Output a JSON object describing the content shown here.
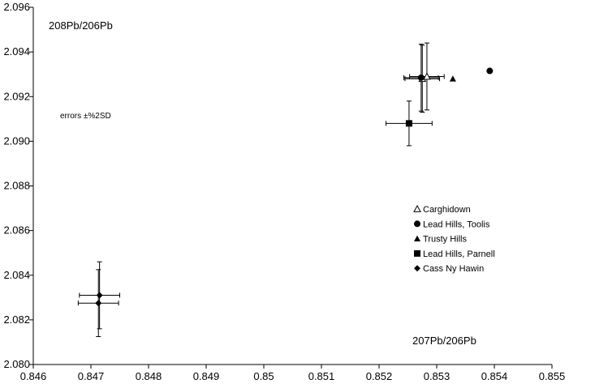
{
  "chart_data": {
    "type": "scatter",
    "title": "",
    "xlabel": "207Pb/206Pb",
    "ylabel": "208Pb/206Pb",
    "note": "errors ±%2SD",
    "xlim": [
      0.846,
      0.855
    ],
    "ylim": [
      2.08,
      2.096
    ],
    "x_ticks": [
      "0.846",
      "0.847",
      "0.848",
      "0.849",
      "0.85",
      "0.851",
      "0.852",
      "0.853",
      "0.854",
      "0.855"
    ],
    "y_ticks": [
      "2.080",
      "2.082",
      "2.084",
      "2.086",
      "2.088",
      "2.090",
      "2.092",
      "2.094",
      "2.096"
    ],
    "grid": false,
    "legend_position": "right",
    "series": [
      {
        "name": "Carghidown",
        "marker": "triangle-open",
        "points": [
          {
            "x": 0.85275,
            "y": 2.0928,
            "xerr": 0.0003,
            "yerr": 0.0015
          },
          {
            "x": 0.85283,
            "y": 2.0929,
            "xerr": 0.0003,
            "yerr": 0.0015
          }
        ]
      },
      {
        "name": "Lead Hills, Toolis",
        "marker": "circle",
        "points": [
          {
            "x": 0.85392,
            "y": 2.09315,
            "xerr": null,
            "yerr": null
          },
          {
            "x": 0.85273,
            "y": 2.09285,
            "xerr": 0.0003,
            "yerr": 0.0015
          }
        ]
      },
      {
        "name": "Trusty Hills",
        "marker": "triangle",
        "points": [
          {
            "x": 0.85328,
            "y": 2.0928,
            "xerr": null,
            "yerr": null
          }
        ]
      },
      {
        "name": "Lead Hills, Parnell",
        "marker": "square",
        "points": [
          {
            "x": 0.85252,
            "y": 2.0908,
            "xerr": 0.0004,
            "yerr": 0.001
          }
        ]
      },
      {
        "name": "Cass Ny Hawin",
        "marker": "diamond",
        "points": [
          {
            "x": 0.84715,
            "y": 2.0831,
            "xerr": 0.00035,
            "yerr": 0.0015
          },
          {
            "x": 0.84713,
            "y": 2.08275,
            "xerr": 0.00035,
            "yerr": 0.0015
          }
        ]
      }
    ]
  }
}
